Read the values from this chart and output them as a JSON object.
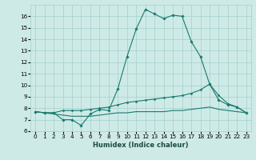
{
  "xlabel": "Humidex (Indice chaleur)",
  "background_color": "#ceeae7",
  "grid_color": "#aad4d0",
  "line_color": "#1a7a6e",
  "xlim": [
    -0.5,
    23.5
  ],
  "ylim": [
    6,
    17
  ],
  "yticks": [
    6,
    7,
    8,
    9,
    10,
    11,
    12,
    13,
    14,
    15,
    16
  ],
  "xticks": [
    0,
    1,
    2,
    3,
    4,
    5,
    6,
    7,
    8,
    9,
    10,
    11,
    12,
    13,
    14,
    15,
    16,
    17,
    18,
    19,
    20,
    21,
    22,
    23
  ],
  "line1_x": [
    0,
    1,
    2,
    3,
    4,
    5,
    6,
    7,
    8,
    9,
    10,
    11,
    12,
    13,
    14,
    15,
    16,
    17,
    18,
    19,
    20,
    21,
    22,
    23
  ],
  "line1_y": [
    7.7,
    7.6,
    7.6,
    7.0,
    7.0,
    6.5,
    7.5,
    7.9,
    7.8,
    9.7,
    12.5,
    14.9,
    16.6,
    16.2,
    15.8,
    16.1,
    16.0,
    13.8,
    12.5,
    10.1,
    8.7,
    8.3,
    8.1,
    7.6
  ],
  "line2_x": [
    0,
    1,
    2,
    3,
    4,
    5,
    6,
    7,
    8,
    9,
    10,
    11,
    12,
    13,
    14,
    15,
    16,
    17,
    18,
    19,
    20,
    21,
    22,
    23
  ],
  "line2_y": [
    7.7,
    7.6,
    7.6,
    7.8,
    7.8,
    7.8,
    7.9,
    8.0,
    8.1,
    8.3,
    8.5,
    8.6,
    8.7,
    8.8,
    8.9,
    9.0,
    9.1,
    9.3,
    9.6,
    10.1,
    9.1,
    8.4,
    8.1,
    7.6
  ],
  "line3_x": [
    0,
    1,
    2,
    3,
    4,
    5,
    6,
    7,
    8,
    9,
    10,
    11,
    12,
    13,
    14,
    15,
    16,
    17,
    18,
    19,
    20,
    21,
    22,
    23
  ],
  "line3_y": [
    7.7,
    7.6,
    7.5,
    7.4,
    7.3,
    7.3,
    7.3,
    7.4,
    7.5,
    7.6,
    7.6,
    7.7,
    7.7,
    7.7,
    7.7,
    7.8,
    7.8,
    7.9,
    8.0,
    8.1,
    7.9,
    7.8,
    7.7,
    7.6
  ],
  "xlabel_fontsize": 6.0,
  "tick_fontsize": 5.2
}
